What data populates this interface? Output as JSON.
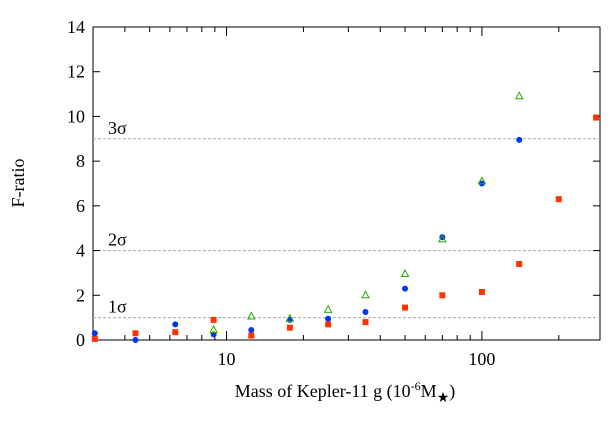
{
  "chart_data": {
    "type": "scatter",
    "title": "",
    "xlabel": "Mass of Kepler-11 g (10",
    "xlabel_exp": "-6",
    "xlabel_unit": "M",
    "xlabel_star": "★",
    "xlabel_close": ")",
    "ylabel": "F-ratio",
    "xscale": "log",
    "xlim": [
      3.0,
      290
    ],
    "ylim": [
      0,
      14
    ],
    "x_ticks": [
      10,
      100
    ],
    "x_tick_labels": [
      "10",
      "100"
    ],
    "y_ticks": [
      0,
      2,
      4,
      6,
      8,
      10,
      12,
      14
    ],
    "y_tick_labels": [
      "0",
      "2",
      "4",
      "6",
      "8",
      "10",
      "12",
      "14"
    ],
    "grid": false,
    "legend": "none",
    "reference_lines": [
      {
        "y": 1,
        "label": "1σ"
      },
      {
        "y": 4,
        "label": "2σ"
      },
      {
        "y": 9,
        "label": "3σ"
      }
    ],
    "series": [
      {
        "marker": "square",
        "color": "#ff3300",
        "points": [
          [
            3.05,
            0.05
          ],
          [
            4.4,
            0.3
          ],
          [
            6.3,
            0.35
          ],
          [
            8.9,
            0.9
          ],
          [
            12.5,
            0.2
          ],
          [
            17.7,
            0.55
          ],
          [
            25,
            0.7
          ],
          [
            35,
            0.8
          ],
          [
            50,
            1.45
          ],
          [
            70,
            2.0
          ],
          [
            100,
            2.15
          ],
          [
            140,
            3.4
          ],
          [
            200,
            6.3
          ],
          [
            280,
            9.95
          ]
        ]
      },
      {
        "marker": "circle",
        "color": "#0033ff",
        "points": [
          [
            3.05,
            0.3
          ],
          [
            4.4,
            0.0
          ],
          [
            6.3,
            0.7
          ],
          [
            8.9,
            0.25
          ],
          [
            12.5,
            0.45
          ],
          [
            17.7,
            0.9
          ],
          [
            25,
            0.95
          ],
          [
            35,
            1.25
          ],
          [
            50,
            2.3
          ],
          [
            70,
            4.6
          ],
          [
            100,
            7.0
          ],
          [
            140,
            8.95
          ]
        ]
      },
      {
        "marker": "triangle",
        "color": "#22aa00",
        "points": [
          [
            8.9,
            0.45
          ],
          [
            12.5,
            1.05
          ],
          [
            17.7,
            0.95
          ],
          [
            25,
            1.35
          ],
          [
            35,
            2.0
          ],
          [
            50,
            2.95
          ],
          [
            70,
            4.5
          ],
          [
            100,
            7.1
          ],
          [
            140,
            10.9
          ]
        ]
      }
    ]
  }
}
